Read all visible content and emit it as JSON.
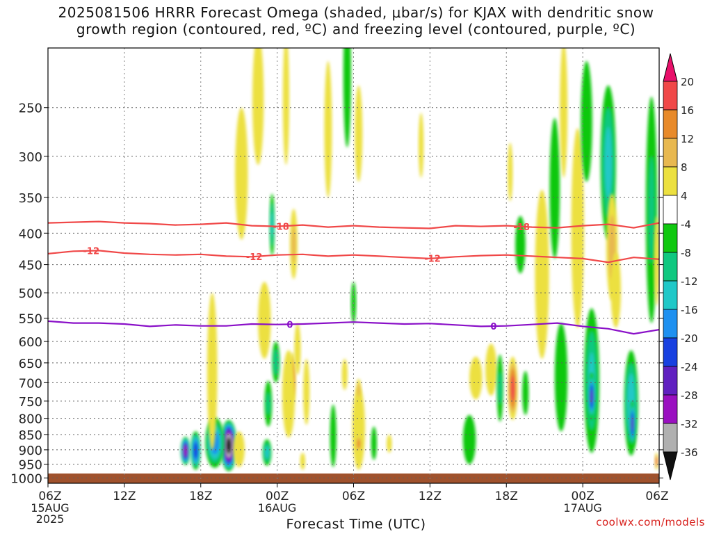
{
  "title_line1": "2025081506 HRRR Forecast Omega (shaded, μbar/s) for KJAX with dendritic snow",
  "title_line2": "growth region (contoured, red, ºC) and freezing level (contoured, purple, ºC)",
  "credit": "coolwx.com/models",
  "chart_data": {
    "type": "heatmap",
    "xlabel": "Forecast Time (UTC)",
    "ylabel": "",
    "xlim": [
      0,
      48
    ],
    "ylim": [
      1020,
      200
    ],
    "y_scale": "log",
    "grid": true,
    "x_ticks": [
      {
        "h": 0,
        "label": "06Z",
        "sub1": "15AUG",
        "sub2": "2025"
      },
      {
        "h": 6,
        "label": "12Z"
      },
      {
        "h": 12,
        "label": "18Z"
      },
      {
        "h": 18,
        "label": "00Z",
        "sub1": "16AUG"
      },
      {
        "h": 24,
        "label": "06Z"
      },
      {
        "h": 30,
        "label": "12Z"
      },
      {
        "h": 36,
        "label": "18Z"
      },
      {
        "h": 42,
        "label": "00Z",
        "sub1": "17AUG"
      },
      {
        "h": 48,
        "label": "06Z"
      }
    ],
    "y_ticks": [
      250,
      300,
      350,
      400,
      450,
      500,
      550,
      600,
      650,
      700,
      750,
      800,
      850,
      900,
      950,
      1000
    ],
    "colorbar": {
      "labels": [
        "20",
        "16",
        "12",
        "8",
        "4",
        "-4",
        "-8",
        "-12",
        "-16",
        "-20",
        "-24",
        "-28",
        "-32",
        "-36"
      ],
      "colors": [
        "#e8106a",
        "#f04848",
        "#e88a2a",
        "#e8b850",
        "#ece040",
        "#ffffff",
        "#10c810",
        "#10c880",
        "#20c8c8",
        "#1e90f0",
        "#1840e0",
        "#6020c0",
        "#9a10c0",
        "#b0b0b0",
        "#101010"
      ]
    },
    "isotherms": [
      {
        "value": -18,
        "label": "-18",
        "color": "#f04848",
        "points": [
          [
            0,
            385
          ],
          [
            2,
            384
          ],
          [
            4,
            383
          ],
          [
            6,
            385
          ],
          [
            8,
            386
          ],
          [
            10,
            388
          ],
          [
            12,
            387
          ],
          [
            14,
            385
          ],
          [
            16,
            389
          ],
          [
            18,
            390
          ],
          [
            20,
            388
          ],
          [
            22,
            391
          ],
          [
            24,
            389
          ],
          [
            26,
            391
          ],
          [
            28,
            392
          ],
          [
            30,
            393
          ],
          [
            32,
            389
          ],
          [
            34,
            390
          ],
          [
            36,
            389
          ],
          [
            38,
            391
          ],
          [
            40,
            392
          ],
          [
            42,
            389
          ],
          [
            44,
            387
          ],
          [
            46,
            392
          ],
          [
            48,
            385
          ]
        ],
        "label_h": [
          18.3,
          37.2
        ]
      },
      {
        "value": -12,
        "label": "-12",
        "color": "#f04848",
        "points": [
          [
            0,
            432
          ],
          [
            2,
            428
          ],
          [
            4,
            427
          ],
          [
            6,
            431
          ],
          [
            8,
            433
          ],
          [
            10,
            434
          ],
          [
            12,
            433
          ],
          [
            14,
            436
          ],
          [
            16,
            437
          ],
          [
            18,
            434
          ],
          [
            20,
            433
          ],
          [
            22,
            436
          ],
          [
            24,
            434
          ],
          [
            26,
            436
          ],
          [
            28,
            438
          ],
          [
            30,
            440
          ],
          [
            32,
            437
          ],
          [
            34,
            435
          ],
          [
            36,
            434
          ],
          [
            38,
            436
          ],
          [
            40,
            438
          ],
          [
            42,
            440
          ],
          [
            44,
            446
          ],
          [
            46,
            438
          ],
          [
            48,
            441
          ]
        ],
        "label_h": [
          3.4,
          16.2,
          30.2
        ]
      },
      {
        "value": 0,
        "label": "0",
        "color": "#8a10c8",
        "points": [
          [
            0,
            556
          ],
          [
            2,
            560
          ],
          [
            4,
            560
          ],
          [
            6,
            562
          ],
          [
            8,
            567
          ],
          [
            10,
            564
          ],
          [
            12,
            566
          ],
          [
            14,
            566
          ],
          [
            16,
            562
          ],
          [
            18,
            563
          ],
          [
            20,
            562
          ],
          [
            22,
            560
          ],
          [
            24,
            558
          ],
          [
            26,
            560
          ],
          [
            28,
            562
          ],
          [
            30,
            561
          ],
          [
            32,
            564
          ],
          [
            34,
            567
          ],
          [
            36,
            566
          ],
          [
            38,
            563
          ],
          [
            40,
            560
          ],
          [
            42,
            567
          ],
          [
            44,
            572
          ],
          [
            46,
            583
          ],
          [
            48,
            574
          ]
        ],
        "label_h": [
          19.0,
          35.0
        ]
      }
    ],
    "omega_cells": [
      {
        "h": 10.8,
        "p": 905,
        "w": 0.75,
        "d": 95,
        "v": -30
      },
      {
        "h": 11.6,
        "p": 905,
        "w": 0.8,
        "d": 130,
        "v": -22
      },
      {
        "h": 14.2,
        "p": 890,
        "w": 1.3,
        "d": 170,
        "v": -38
      },
      {
        "h": 13.1,
        "p": 880,
        "w": 1.5,
        "d": 165,
        "v": -18
      },
      {
        "h": 12.9,
        "p": 700,
        "w": 0.8,
        "d": 400,
        "v": 5
      },
      {
        "h": 15.2,
        "p": 330,
        "w": 1.0,
        "d": 160,
        "v": 5
      },
      {
        "h": 15.0,
        "p": 900,
        "w": 0.9,
        "d": 120,
        "v": 5
      },
      {
        "h": 16.5,
        "p": 250,
        "w": 0.9,
        "d": 120,
        "v": 4
      },
      {
        "h": 17.0,
        "p": 560,
        "w": 1.0,
        "d": 160,
        "v": 5
      },
      {
        "h": 17.9,
        "p": 650,
        "w": 0.6,
        "d": 100,
        "v": -10
      },
      {
        "h": 17.3,
        "p": 760,
        "w": 0.6,
        "d": 130,
        "v": -8
      },
      {
        "h": 17.2,
        "p": 910,
        "w": 0.7,
        "d": 90,
        "v": -13
      },
      {
        "h": 17.6,
        "p": 390,
        "w": 0.4,
        "d": 90,
        "v": -12
      },
      {
        "h": 19.2,
        "p": 690,
        "w": 0.5,
        "d": 130,
        "v": 19
      },
      {
        "h": 18.9,
        "p": 740,
        "w": 1.0,
        "d": 240,
        "v": 6
      },
      {
        "h": 19.3,
        "p": 420,
        "w": 0.6,
        "d": 110,
        "v": 9
      },
      {
        "h": 18.7,
        "p": 250,
        "w": 0.5,
        "d": 120,
        "v": 4
      },
      {
        "h": 19.6,
        "p": 620,
        "w": 0.5,
        "d": 120,
        "v": 4
      },
      {
        "h": 20.3,
        "p": 730,
        "w": 0.5,
        "d": 180,
        "v": 4
      },
      {
        "h": 20.0,
        "p": 940,
        "w": 0.4,
        "d": 60,
        "v": 6
      },
      {
        "h": 22.0,
        "p": 280,
        "w": 0.6,
        "d": 140,
        "v": 5
      },
      {
        "h": 24.4,
        "p": 280,
        "w": 0.6,
        "d": 100,
        "v": 5
      },
      {
        "h": 22.4,
        "p": 860,
        "w": 0.5,
        "d": 200,
        "v": -7
      },
      {
        "h": 23.3,
        "p": 680,
        "w": 0.45,
        "d": 80,
        "v": 4
      },
      {
        "h": 24.4,
        "p": 840,
        "w": 1.0,
        "d": 260,
        "v": 7
      },
      {
        "h": 24.4,
        "p": 880,
        "w": 0.5,
        "d": 60,
        "v": 13
      },
      {
        "h": 24.4,
        "p": 720,
        "w": 0.4,
        "d": 60,
        "v": 10
      },
      {
        "h": 24.0,
        "p": 520,
        "w": 0.4,
        "d": 80,
        "v": -6
      },
      {
        "h": 25.6,
        "p": 880,
        "w": 0.45,
        "d": 110,
        "v": -7
      },
      {
        "h": 23.5,
        "p": 230,
        "w": 0.6,
        "d": 120,
        "v": -6
      },
      {
        "h": 26.8,
        "p": 880,
        "w": 0.4,
        "d": 60,
        "v": 4
      },
      {
        "h": 29.3,
        "p": 290,
        "w": 0.4,
        "d": 70,
        "v": 4
      },
      {
        "h": 33.1,
        "p": 870,
        "w": 1.0,
        "d": 160,
        "v": -7
      },
      {
        "h": 33.6,
        "p": 690,
        "w": 1.0,
        "d": 110,
        "v": 5
      },
      {
        "h": 34.8,
        "p": 670,
        "w": 0.9,
        "d": 130,
        "v": 4
      },
      {
        "h": 35.5,
        "p": 720,
        "w": 0.5,
        "d": 180,
        "v": -8
      },
      {
        "h": 36.5,
        "p": 720,
        "w": 0.8,
        "d": 170,
        "v": 17
      },
      {
        "h": 37.5,
        "p": 730,
        "w": 0.5,
        "d": 120,
        "v": -6
      },
      {
        "h": 37.1,
        "p": 420,
        "w": 0.8,
        "d": 90,
        "v": -7
      },
      {
        "h": 36.3,
        "p": 320,
        "w": 0.4,
        "d": 70,
        "v": 4
      },
      {
        "h": 38.8,
        "p": 490,
        "w": 1.1,
        "d": 300,
        "v": 5
      },
      {
        "h": 40.3,
        "p": 700,
        "w": 1.0,
        "d": 280,
        "v": -7
      },
      {
        "h": 39.8,
        "p": 350,
        "w": 0.8,
        "d": 180,
        "v": -6
      },
      {
        "h": 41.6,
        "p": 420,
        "w": 1.0,
        "d": 300,
        "v": 5
      },
      {
        "h": 42.7,
        "p": 720,
        "w": 1.2,
        "d": 380,
        "v": -12
      },
      {
        "h": 42.7,
        "p": 740,
        "w": 0.6,
        "d": 130,
        "v": -24
      },
      {
        "h": 42.3,
        "p": 270,
        "w": 0.9,
        "d": 120,
        "v": -7
      },
      {
        "h": 44.0,
        "p": 320,
        "w": 1.2,
        "d": 180,
        "v": -13
      },
      {
        "h": 44.3,
        "p": 430,
        "w": 0.9,
        "d": 170,
        "v": 10
      },
      {
        "h": 44.6,
        "p": 500,
        "w": 0.8,
        "d": 140,
        "v": 6
      },
      {
        "h": 45.8,
        "p": 770,
        "w": 1.1,
        "d": 300,
        "v": -15
      },
      {
        "h": 45.9,
        "p": 820,
        "w": 0.5,
        "d": 140,
        "v": -24
      },
      {
        "h": 47.4,
        "p": 400,
        "w": 0.9,
        "d": 320,
        "v": -8
      },
      {
        "h": 47.8,
        "p": 450,
        "w": 0.4,
        "d": 150,
        "v": 7
      },
      {
        "h": 47.8,
        "p": 940,
        "w": 0.3,
        "d": 60,
        "v": 16
      },
      {
        "h": 40.5,
        "p": 260,
        "w": 0.6,
        "d": 130,
        "v": 4
      }
    ]
  }
}
